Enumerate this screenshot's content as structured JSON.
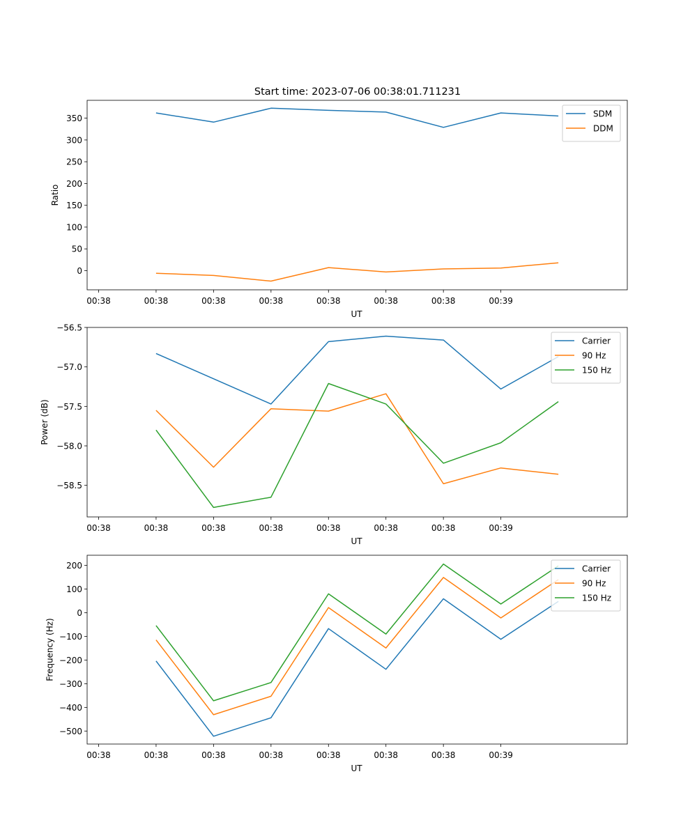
{
  "title": "Start time: 2023-07-06 00:38:01.711231",
  "colors": {
    "blue": "#1f77b4",
    "orange": "#ff7f0e",
    "green": "#2ca02c"
  },
  "chart_data": [
    {
      "type": "line",
      "xlabel": "UT",
      "ylabel": "Ratio",
      "x_tick_labels": [
        "00:38",
        "00:38",
        "00:38",
        "00:38",
        "00:38",
        "00:38",
        "00:38",
        "00:39"
      ],
      "xlim": [
        -0.2,
        9.2
      ],
      "x": [
        1,
        2,
        3,
        4,
        5,
        6,
        7,
        8
      ],
      "yticks": [
        0,
        50,
        100,
        150,
        200,
        250,
        300,
        350
      ],
      "ylim": [
        -44,
        391
      ],
      "legend_position": "top-right",
      "series": [
        {
          "name": "SDM",
          "color": "#1f77b4",
          "values": [
            362,
            341,
            373,
            368,
            364,
            329,
            362,
            355
          ]
        },
        {
          "name": "DDM",
          "color": "#ff7f0e",
          "values": [
            -6,
            -11,
            -24,
            7,
            -3,
            4,
            6,
            18
          ]
        }
      ]
    },
    {
      "type": "line",
      "xlabel": "UT",
      "ylabel": "Power (dB)",
      "x_tick_labels": [
        "00:38",
        "00:38",
        "00:38",
        "00:38",
        "00:38",
        "00:38",
        "00:38",
        "00:39"
      ],
      "xlim": [
        -0.2,
        9.2
      ],
      "x": [
        1,
        2,
        3,
        4,
        5,
        6,
        7,
        8
      ],
      "yticks": [
        -58.5,
        -58.0,
        -57.5,
        -57.0,
        -56.5
      ],
      "ytick_labels": [
        "−58.5",
        "−58.0",
        "−57.5",
        "−57.0",
        "−56.5"
      ],
      "ylim": [
        -58.9,
        -56.5
      ],
      "legend_position": "top-right",
      "series": [
        {
          "name": "Carrier",
          "color": "#1f77b4",
          "values": [
            -56.83,
            -57.15,
            -57.47,
            -56.68,
            -56.61,
            -56.66,
            -57.28,
            -56.87
          ]
        },
        {
          "name": "90 Hz",
          "color": "#ff7f0e",
          "values": [
            -57.55,
            -58.27,
            -57.53,
            -57.56,
            -57.34,
            -58.48,
            -58.28,
            -58.36
          ]
        },
        {
          "name": "150 Hz",
          "color": "#2ca02c",
          "values": [
            -57.8,
            -58.78,
            -58.65,
            -57.21,
            -57.47,
            -58.22,
            -57.96,
            -57.44
          ]
        }
      ]
    },
    {
      "type": "line",
      "xlabel": "UT",
      "ylabel": "Frequency (Hz)",
      "x_tick_labels": [
        "00:38",
        "00:38",
        "00:38",
        "00:38",
        "00:38",
        "00:38",
        "00:38",
        "00:39"
      ],
      "xlim": [
        -0.2,
        9.2
      ],
      "x": [
        1,
        2,
        3,
        4,
        5,
        6,
        7,
        8
      ],
      "yticks": [
        -500,
        -400,
        -300,
        -200,
        -100,
        0,
        100,
        200
      ],
      "ytick_labels": [
        "−500",
        "−400",
        "−300",
        "−200",
        "−100",
        "0",
        "100",
        "200"
      ],
      "ylim": [
        -555,
        243
      ],
      "legend_position": "top-right",
      "series": [
        {
          "name": "Carrier",
          "color": "#1f77b4",
          "values": [
            -204,
            -522,
            -444,
            -67,
            -239,
            59,
            -112,
            48
          ]
        },
        {
          "name": "90 Hz",
          "color": "#ff7f0e",
          "values": [
            -115,
            -431,
            -353,
            22,
            -149,
            149,
            -22,
            140
          ]
        },
        {
          "name": "150 Hz",
          "color": "#2ca02c",
          "values": [
            -54,
            -372,
            -295,
            80,
            -90,
            206,
            37,
            198
          ]
        }
      ]
    }
  ]
}
